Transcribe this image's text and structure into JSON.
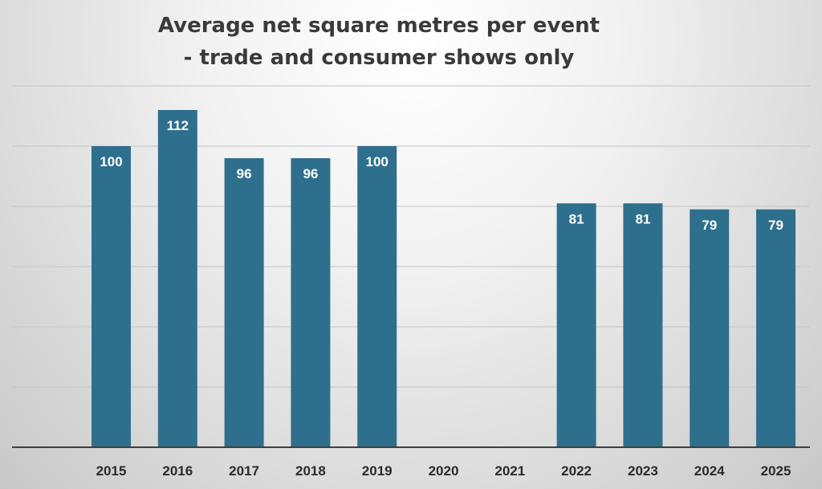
{
  "chart_data": {
    "type": "bar",
    "title_lines": [
      "Average net square metres per event",
      "- trade and consumer shows only"
    ],
    "xlabel": "",
    "ylabel": "",
    "categories": [
      "2015",
      "2016",
      "2017",
      "2018",
      "2019",
      "2020",
      "2021",
      "2022",
      "2023",
      "2024",
      "2025"
    ],
    "values": [
      100,
      112,
      96,
      96,
      100,
      null,
      null,
      81,
      81,
      79,
      79
    ],
    "data_labels": [
      "100",
      "112",
      "96",
      "96",
      "100",
      "",
      "",
      "81",
      "81",
      "79",
      "79"
    ],
    "ylim": [
      0,
      120
    ],
    "yticks": [
      0,
      20,
      40,
      60,
      80,
      100,
      120
    ],
    "y_tick_labels_shown": false,
    "grid": true,
    "legend": "none",
    "colors": {
      "bar": "#2f6f8e",
      "data_label": "#ffffff",
      "gridline": "#c4c4c4",
      "axis": "#3f3f3f",
      "tick_label": "#2b2b2b",
      "title": "#3a3a3a"
    }
  }
}
